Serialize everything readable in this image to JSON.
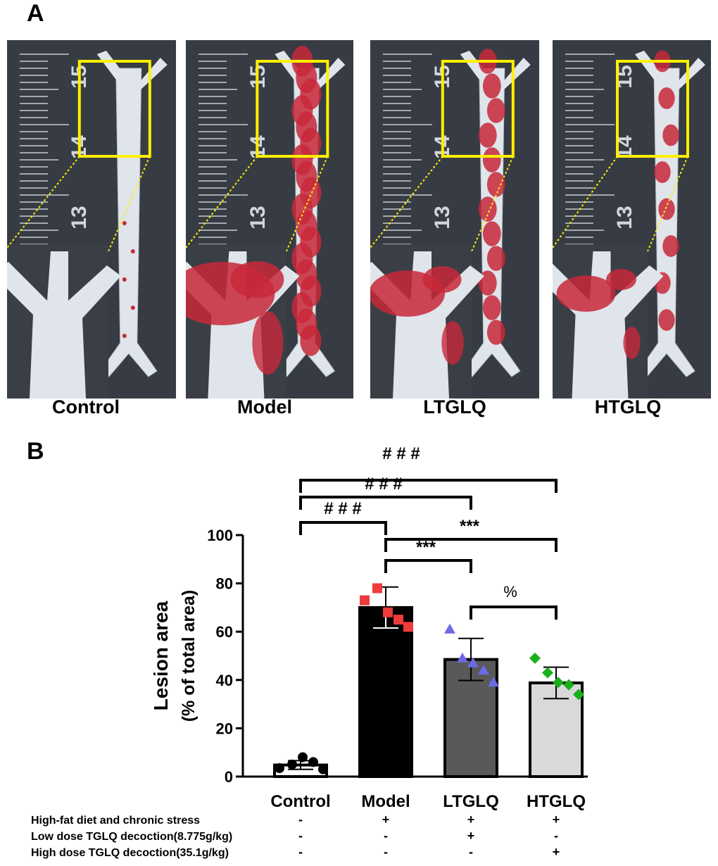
{
  "panels": {
    "a": "A",
    "b": "B"
  },
  "photos": [
    {
      "label": "Control",
      "lesion": "none"
    },
    {
      "label": "Model",
      "lesion": "heavy"
    },
    {
      "label": "LTGLQ",
      "lesion": "moderate"
    },
    {
      "label": "HTGLQ",
      "lesion": "mild"
    }
  ],
  "ruler_ticks": [
    "15",
    "14",
    "13"
  ],
  "colors": {
    "inset_box": "#ffef00",
    "plaque": "#c8283a",
    "aorta": "#dfe5ea",
    "ruler_bg": "#2d3138"
  },
  "chart_data": {
    "type": "bar",
    "categories": [
      "Control",
      "Model",
      "LTGLQ",
      "HTGLQ"
    ],
    "means": [
      4.8,
      70.0,
      48.5,
      38.8
    ],
    "sd": [
      1.8,
      8.5,
      8.7,
      6.5
    ],
    "points": [
      [
        3.5,
        5.0,
        8.0,
        6.0,
        3.0
      ],
      [
        73.0,
        78.0,
        68.0,
        65.0,
        62.0
      ],
      [
        61.0,
        49.0,
        47.0,
        44.0,
        39.0
      ],
      [
        49.0,
        43.0,
        39.0,
        38.0,
        34.0
      ]
    ],
    "bar_colors": [
      "#ffffff",
      "#000000",
      "#595959",
      "#d9d9d9"
    ],
    "point_colors": [
      "#000000",
      "#ee3b3b",
      "#6b6be8",
      "#1ab01a"
    ],
    "point_shapes": [
      "circle",
      "square",
      "triangle",
      "diamond"
    ],
    "ylabel": [
      "Lesion area",
      "(% of total area)"
    ],
    "ylim": [
      0,
      100
    ],
    "yticks": [
      0,
      20,
      40,
      60,
      80,
      100
    ],
    "significance": [
      {
        "from": 0,
        "to": 3,
        "label": "# # #"
      },
      {
        "from": 0,
        "to": 2,
        "label": "# # #"
      },
      {
        "from": 0,
        "to": 1,
        "label": "# # #"
      },
      {
        "from": 1,
        "to": 3,
        "label": "***"
      },
      {
        "from": 1,
        "to": 2,
        "label": "***"
      },
      {
        "from": 2,
        "to": 3,
        "label": "%"
      }
    ],
    "treatments": [
      {
        "label": "High-fat diet and chronic stress",
        "values": [
          "-",
          "+",
          "+",
          "+"
        ]
      },
      {
        "label": "Low dose TGLQ decoction(8.775g/kg)",
        "values": [
          "-",
          "-",
          "+",
          "-"
        ]
      },
      {
        "label": "High dose TGLQ decoction(35.1g/kg)",
        "values": [
          "-",
          "-",
          "-",
          "+"
        ]
      }
    ]
  }
}
